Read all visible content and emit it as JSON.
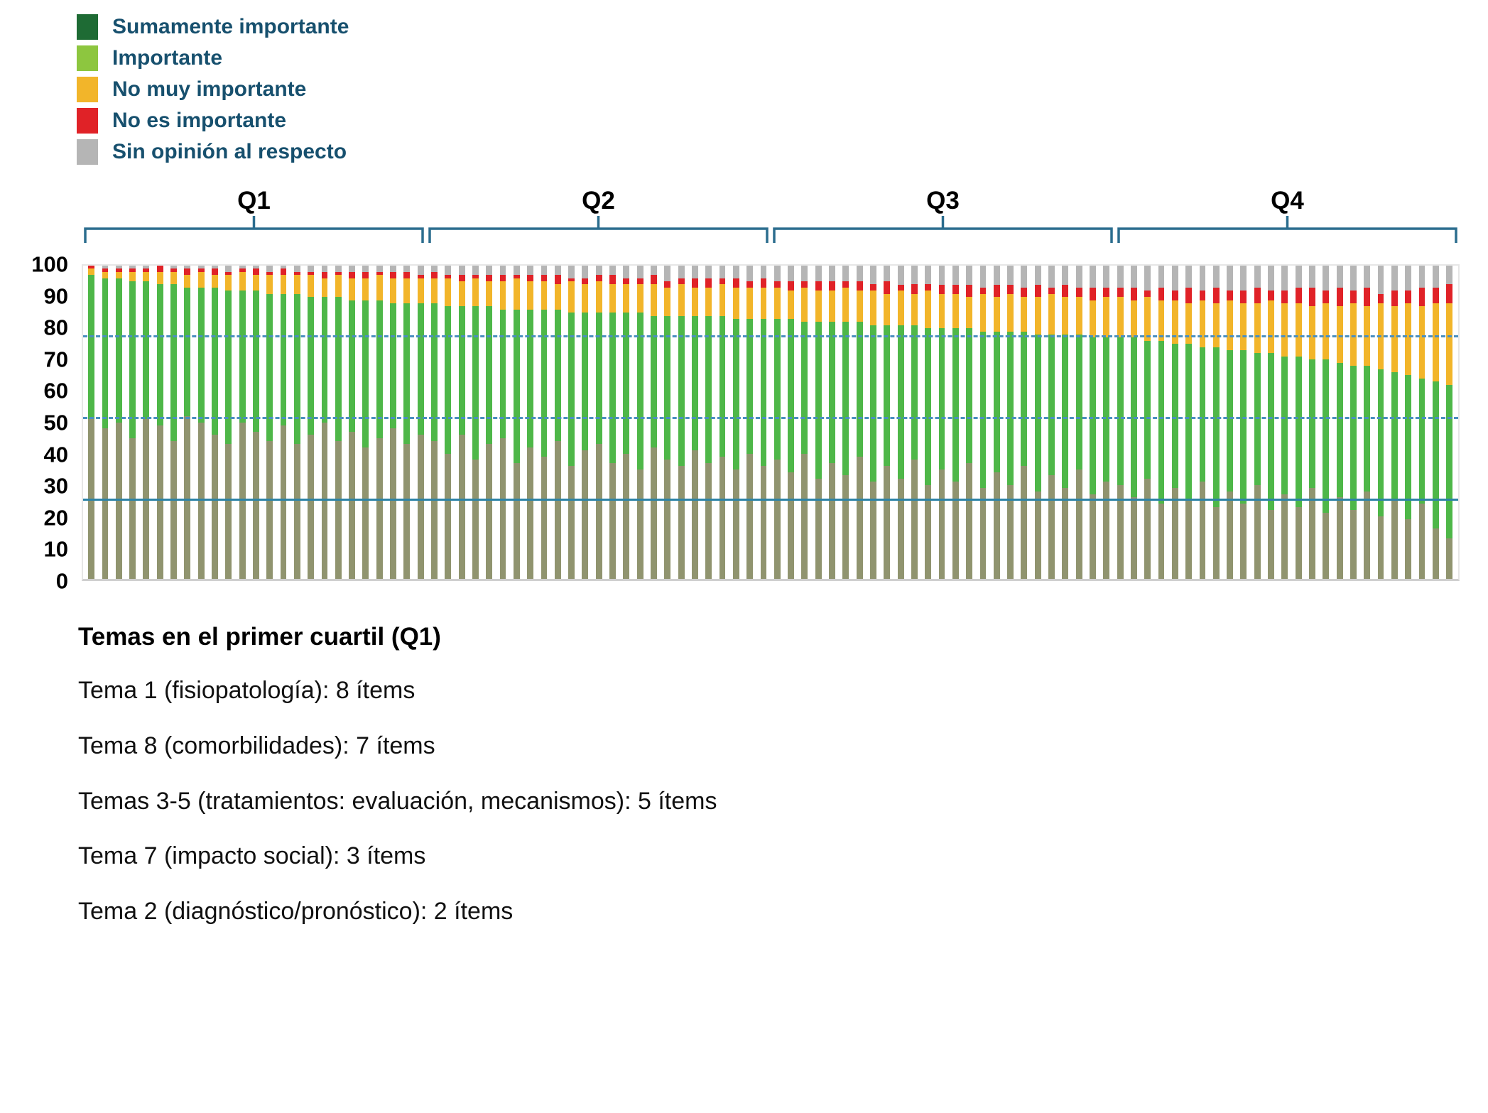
{
  "legend": {
    "items": [
      {
        "label": "Sumamente importante",
        "color": "#1e6b34",
        "icon": "dark-green-swatch-icon"
      },
      {
        "label": "Importante",
        "color": "#8dc63f",
        "icon": "light-green-swatch-icon"
      },
      {
        "label": "No muy importante",
        "color": "#f2b52a",
        "icon": "yellow-swatch-icon"
      },
      {
        "label": "No es importante",
        "color": "#e02227",
        "icon": "red-swatch-icon"
      },
      {
        "label": "Sin opinión al respecto",
        "color": "#b5b5b5",
        "icon": "gray-swatch-icon"
      }
    ]
  },
  "footer": {
    "title": "Temas en el primer cuartil (Q1)",
    "lines": [
      "Tema 1 (fisiopatología): 8 ítems",
      "Tema 8 (comorbilidades): 7 ítems",
      "Temas 3-5 (tratamientos: evaluación, mecanismos): 5 ítems",
      "Tema 7 (impacto social): 3 ítems",
      "Tema 2 (diagnóstico/pronóstico): 2 ítems"
    ]
  },
  "chart_data": {
    "type": "bar",
    "stacked": true,
    "n_bars": 100,
    "ylim": [
      0,
      100
    ],
    "yticks": [
      0,
      10,
      20,
      30,
      40,
      50,
      60,
      70,
      80,
      90,
      100
    ],
    "grid": false,
    "legend_position": "top-left",
    "quartile_brackets": [
      "Q1",
      "Q2",
      "Q3",
      "Q4"
    ],
    "bracket_color": "#2b6d8e",
    "reference_lines": [
      {
        "y": 77,
        "style": "dashed",
        "color": "#4a8fc0"
      },
      {
        "y": 51,
        "style": "dashed",
        "color": "#4a8fc0"
      },
      {
        "y": 25,
        "style": "solid",
        "color": "#2d83a6"
      }
    ],
    "series": [
      {
        "name": "Sumamente importante",
        "bar_color": "#90946f",
        "values": [
          51,
          48,
          50,
          45,
          51,
          49,
          44,
          52,
          50,
          46,
          43,
          50,
          47,
          44,
          49,
          43,
          46,
          50,
          44,
          47,
          42,
          45,
          48,
          43,
          46,
          44,
          40,
          46,
          38,
          43,
          45,
          37,
          42,
          39,
          44,
          36,
          41,
          43,
          37,
          40,
          35,
          42,
          38,
          36,
          41,
          37,
          39,
          35,
          40,
          36,
          38,
          34,
          40,
          32,
          37,
          33,
          39,
          31,
          36,
          32,
          38,
          30,
          35,
          31,
          37,
          29,
          34,
          30,
          36,
          28,
          33,
          29,
          35,
          27,
          31,
          30,
          26,
          32,
          24,
          29,
          25,
          31,
          23,
          28,
          24,
          30,
          22,
          27,
          23,
          29,
          21,
          26,
          22,
          28,
          20,
          25,
          19,
          24,
          16,
          13
        ]
      },
      {
        "name": "Importante",
        "bar_color": "#4eb748",
        "values": [
          46,
          48,
          46,
          50,
          44,
          45,
          50,
          41,
          43,
          47,
          49,
          42,
          45,
          47,
          42,
          48,
          44,
          40,
          46,
          42,
          47,
          44,
          40,
          45,
          42,
          44,
          47,
          41,
          49,
          44,
          41,
          49,
          44,
          47,
          42,
          49,
          44,
          42,
          48,
          45,
          50,
          42,
          46,
          48,
          43,
          47,
          45,
          48,
          43,
          47,
          45,
          49,
          42,
          50,
          45,
          49,
          43,
          50,
          45,
          49,
          43,
          50,
          45,
          49,
          43,
          50,
          45,
          49,
          43,
          50,
          45,
          49,
          43,
          50,
          46,
          47,
          51,
          44,
          52,
          46,
          50,
          43,
          51,
          45,
          49,
          42,
          50,
          44,
          48,
          41,
          49,
          43,
          46,
          40,
          47,
          41,
          46,
          40,
          47,
          49
        ]
      },
      {
        "name": "No muy importante",
        "bar_color": "#f2b52a",
        "values": [
          2,
          2,
          2,
          3,
          3,
          4,
          4,
          4,
          5,
          4,
          5,
          6,
          5,
          6,
          6,
          6,
          7,
          6,
          7,
          7,
          7,
          8,
          8,
          8,
          8,
          8,
          9,
          8,
          9,
          8,
          9,
          10,
          9,
          9,
          8,
          10,
          9,
          10,
          9,
          9,
          9,
          10,
          9,
          10,
          9,
          9,
          10,
          10,
          10,
          10,
          10,
          9,
          11,
          10,
          10,
          11,
          10,
          11,
          10,
          11,
          10,
          12,
          11,
          11,
          10,
          12,
          11,
          12,
          11,
          12,
          13,
          12,
          12,
          12,
          13,
          13,
          12,
          14,
          13,
          14,
          13,
          15,
          14,
          16,
          15,
          16,
          17,
          17,
          17,
          17,
          18,
          18,
          20,
          19,
          21,
          21,
          23,
          23,
          25,
          26
        ]
      },
      {
        "name": "No es importante",
        "bar_color": "#e02227",
        "values": [
          1,
          1,
          1,
          1,
          1,
          2,
          1,
          2,
          1,
          2,
          1,
          1,
          2,
          1,
          2,
          1,
          1,
          2,
          1,
          2,
          2,
          1,
          2,
          2,
          1,
          2,
          1,
          2,
          1,
          2,
          2,
          1,
          2,
          2,
          3,
          1,
          2,
          2,
          3,
          2,
          2,
          3,
          2,
          2,
          3,
          3,
          2,
          3,
          2,
          3,
          2,
          3,
          2,
          3,
          3,
          2,
          3,
          2,
          4,
          2,
          3,
          2,
          3,
          3,
          4,
          2,
          4,
          3,
          3,
          4,
          2,
          4,
          3,
          4,
          3,
          3,
          4,
          2,
          4,
          3,
          5,
          3,
          5,
          3,
          4,
          5,
          3,
          4,
          5,
          6,
          4,
          6,
          4,
          6,
          3,
          5,
          4,
          6,
          5,
          6
        ]
      },
      {
        "name": "Sin opinión al respecto",
        "bar_color": "#b5b5b5",
        "values": [
          0,
          1,
          1,
          1,
          1,
          0,
          1,
          1,
          1,
          1,
          2,
          1,
          1,
          2,
          1,
          2,
          2,
          2,
          2,
          2,
          2,
          2,
          2,
          2,
          3,
          2,
          3,
          3,
          3,
          3,
          3,
          3,
          3,
          3,
          3,
          4,
          4,
          3,
          3,
          4,
          4,
          3,
          5,
          4,
          4,
          4,
          4,
          4,
          5,
          4,
          5,
          5,
          5,
          5,
          5,
          5,
          5,
          6,
          5,
          6,
          6,
          6,
          6,
          6,
          6,
          7,
          6,
          6,
          7,
          6,
          7,
          6,
          7,
          7,
          7,
          7,
          7,
          8,
          7,
          8,
          7,
          8,
          7,
          8,
          8,
          7,
          8,
          8,
          7,
          7,
          8,
          7,
          8,
          7,
          9,
          8,
          8,
          7,
          7,
          6
        ]
      }
    ]
  }
}
